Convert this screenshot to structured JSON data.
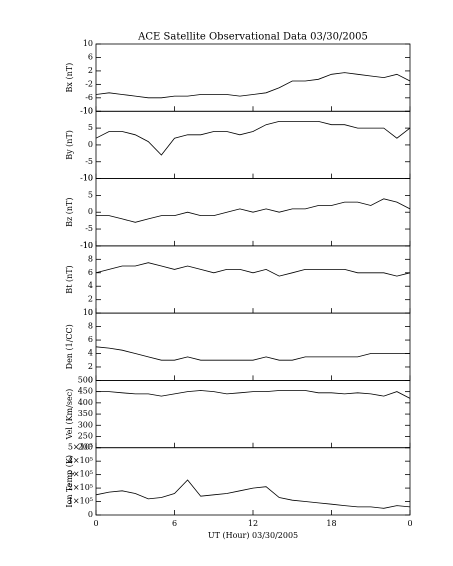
{
  "chart_data": {
    "type": "line",
    "title": "ACE Satellite Observational Data   03/30/2005",
    "xlabel": "UT (Hour)   03/30/2005",
    "color": "#000000",
    "x": [
      0,
      1,
      2,
      3,
      4,
      5,
      6,
      7,
      8,
      9,
      10,
      11,
      12,
      13,
      14,
      15,
      16,
      17,
      18,
      19,
      20,
      21,
      22,
      23,
      24
    ],
    "xlim": [
      0,
      24
    ],
    "xticks": [
      0,
      6,
      12,
      18,
      {
        "value": 24,
        "label": "0"
      }
    ],
    "panels": [
      {
        "ylabel": "Bx (nT)",
        "ylim": [
          -10,
          10
        ],
        "yticks": [
          -10,
          -6,
          -2,
          2,
          6,
          10
        ],
        "values": [
          -5,
          -4.5,
          -5,
          -5.5,
          -6,
          -6,
          -5.5,
          -5.5,
          -5,
          -5,
          -5,
          -5.5,
          -5,
          -4.5,
          -3,
          -1,
          -1,
          -0.5,
          1,
          1.5,
          1,
          0.5,
          0,
          1,
          -1
        ]
      },
      {
        "ylabel": "By (nT)",
        "ylim": [
          -10,
          10
        ],
        "yticks": [
          -10,
          -5,
          0,
          5,
          10
        ],
        "values": [
          2,
          4,
          4,
          3,
          1,
          -3,
          2,
          3,
          3,
          4,
          4,
          3,
          4,
          6,
          7,
          7,
          7,
          7,
          6,
          6,
          5,
          5,
          5,
          2,
          5
        ]
      },
      {
        "ylabel": "Bz (nT)",
        "ylim": [
          -10,
          10
        ],
        "yticks": [
          -10,
          -5,
          0,
          5,
          10
        ],
        "values": [
          -1,
          -1,
          -2,
          -3,
          -2,
          -1,
          -1,
          0,
          -1,
          -1,
          0,
          1,
          0,
          1,
          0,
          1,
          1,
          2,
          2,
          3,
          3,
          2,
          4,
          3,
          1
        ]
      },
      {
        "ylabel": "Bt (nT)",
        "ylim": [
          0,
          10
        ],
        "yticks": [
          0,
          2,
          4,
          6,
          8,
          10
        ],
        "values": [
          6,
          6.5,
          7,
          7,
          7.5,
          7,
          6.5,
          7,
          6.5,
          6,
          6.5,
          6.5,
          6,
          6.5,
          5.5,
          6,
          6.5,
          6.5,
          6.5,
          6.5,
          6,
          6,
          6,
          5.5,
          6
        ]
      },
      {
        "ylabel": "Den (1/CC)",
        "ylim": [
          0,
          10
        ],
        "yticks": [
          0,
          2,
          4,
          6,
          8,
          10
        ],
        "values": [
          5,
          4.8,
          4.5,
          4,
          3.5,
          3,
          3,
          3.5,
          3,
          3,
          3,
          3,
          3,
          3.5,
          3,
          3,
          3.5,
          3.5,
          3.5,
          3.5,
          3.5,
          4,
          4,
          4,
          4
        ]
      },
      {
        "ylabel": "Vel (Km/sec)",
        "ylim": [
          200,
          500
        ],
        "yticks": [
          200,
          250,
          300,
          350,
          400,
          450,
          500
        ],
        "values": [
          450,
          450,
          445,
          440,
          440,
          430,
          440,
          450,
          455,
          450,
          440,
          445,
          450,
          450,
          455,
          455,
          455,
          445,
          445,
          440,
          445,
          440,
          430,
          450,
          420
        ]
      },
      {
        "ylabel": "Ion Temp (K)",
        "ylim": [
          0,
          500000
        ],
        "yticks": [
          0,
          {
            "value": 100000,
            "label": "1×10⁵"
          },
          {
            "value": 200000,
            "label": "2×10⁵"
          },
          {
            "value": 300000,
            "label": "3×10⁵"
          },
          {
            "value": 400000,
            "label": "4×10⁵"
          },
          {
            "value": 500000,
            "label": "5×10⁵"
          }
        ],
        "values": [
          150000,
          170000,
          180000,
          160000,
          120000,
          130000,
          160000,
          260000,
          140000,
          150000,
          160000,
          180000,
          200000,
          210000,
          130000,
          110000,
          100000,
          90000,
          80000,
          70000,
          60000,
          60000,
          50000,
          70000,
          60000
        ]
      }
    ]
  }
}
